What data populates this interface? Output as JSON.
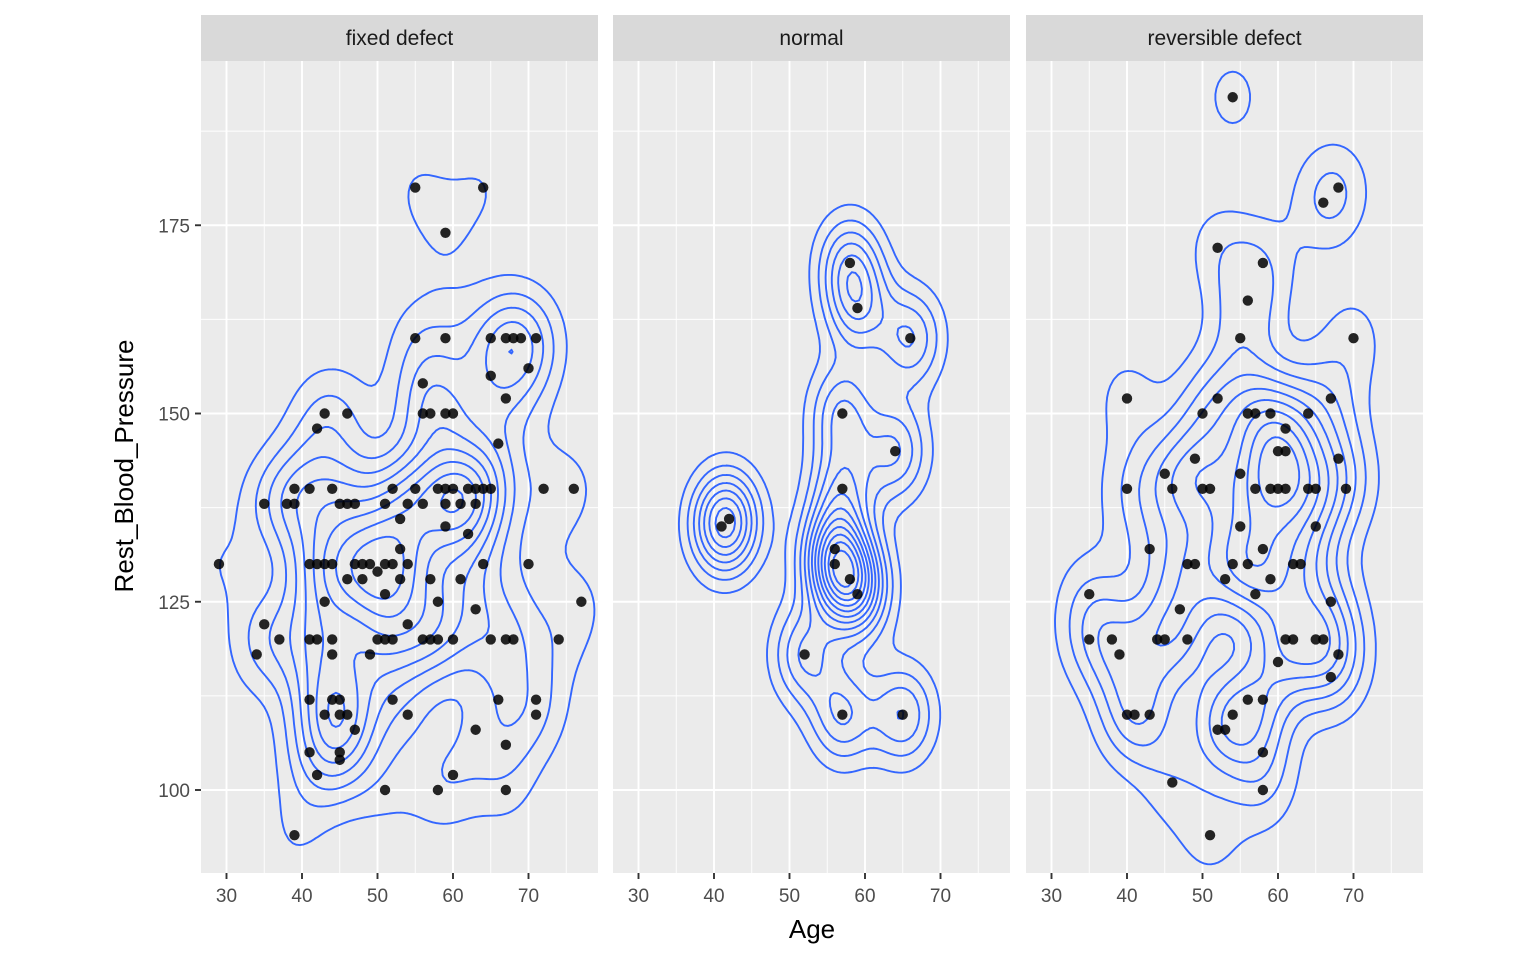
{
  "chart_data": {
    "type": "scatter",
    "subtype": "faceted scatter with 2D density contours",
    "xlabel": "Age",
    "ylabel": "Rest_Blood_Pressure",
    "x_ticks": [
      30,
      40,
      50,
      60,
      70
    ],
    "y_ticks": [
      100,
      125,
      150,
      175
    ],
    "xlim": [
      28,
      80
    ],
    "ylim": [
      89,
      197
    ],
    "grid": true,
    "legend": "none",
    "colors": {
      "panel_background": "#ebebeb",
      "strip_background": "#d9d9d9",
      "grid": "#ffffff",
      "points": "#000000",
      "contours": "#3366ff"
    },
    "facets": [
      {
        "label": "fixed defect",
        "points": [
          [
            29,
            130
          ],
          [
            34,
            118
          ],
          [
            35,
            122
          ],
          [
            35,
            138
          ],
          [
            37,
            120
          ],
          [
            38,
            138
          ],
          [
            39,
            138
          ],
          [
            39,
            140
          ],
          [
            39,
            94
          ],
          [
            41,
            112
          ],
          [
            41,
            105
          ],
          [
            41,
            120
          ],
          [
            41,
            130
          ],
          [
            41,
            140
          ],
          [
            42,
            102
          ],
          [
            42,
            120
          ],
          [
            42,
            130
          ],
          [
            42,
            148
          ],
          [
            43,
            110
          ],
          [
            43,
            130
          ],
          [
            43,
            125
          ],
          [
            43,
            150
          ],
          [
            44,
            112
          ],
          [
            44,
            118
          ],
          [
            44,
            120
          ],
          [
            44,
            130
          ],
          [
            44,
            140
          ],
          [
            45,
            110
          ],
          [
            45,
            112
          ],
          [
            45,
            138
          ],
          [
            45,
            104
          ],
          [
            45,
            105
          ],
          [
            46,
            110
          ],
          [
            46,
            128
          ],
          [
            46,
            150
          ],
          [
            46,
            138
          ],
          [
            47,
            108
          ],
          [
            47,
            130
          ],
          [
            47,
            138
          ],
          [
            48,
            128
          ],
          [
            48,
            130
          ],
          [
            49,
            118
          ],
          [
            49,
            130
          ],
          [
            50,
            120
          ],
          [
            50,
            129
          ],
          [
            51,
            100
          ],
          [
            51,
            120
          ],
          [
            51,
            126
          ],
          [
            51,
            130
          ],
          [
            51,
            138
          ],
          [
            52,
            112
          ],
          [
            52,
            120
          ],
          [
            52,
            130
          ],
          [
            52,
            140
          ],
          [
            53,
            128
          ],
          [
            53,
            132
          ],
          [
            53,
            136
          ],
          [
            54,
            110
          ],
          [
            54,
            122
          ],
          [
            54,
            130
          ],
          [
            54,
            138
          ],
          [
            55,
            180
          ],
          [
            55,
            140
          ],
          [
            55,
            160
          ],
          [
            56,
            120
          ],
          [
            56,
            138
          ],
          [
            56,
            154
          ],
          [
            56,
            150
          ],
          [
            57,
            120
          ],
          [
            57,
            128
          ],
          [
            57,
            150
          ],
          [
            58,
            100
          ],
          [
            58,
            120
          ],
          [
            58,
            125
          ],
          [
            58,
            140
          ],
          [
            59,
            174
          ],
          [
            59,
            160
          ],
          [
            59,
            150
          ],
          [
            59,
            140
          ],
          [
            59,
            138
          ],
          [
            59,
            135
          ],
          [
            60,
            102
          ],
          [
            60,
            150
          ],
          [
            60,
            140
          ],
          [
            60,
            120
          ],
          [
            61,
            128
          ],
          [
            61,
            138
          ],
          [
            62,
            140
          ],
          [
            62,
            134
          ],
          [
            63,
            108
          ],
          [
            63,
            124
          ],
          [
            63,
            138
          ],
          [
            63,
            140
          ],
          [
            64,
            180
          ],
          [
            64,
            130
          ],
          [
            64,
            140
          ],
          [
            65,
            120
          ],
          [
            65,
            140
          ],
          [
            65,
            155
          ],
          [
            65,
            160
          ],
          [
            66,
            112
          ],
          [
            66,
            146
          ],
          [
            67,
            106
          ],
          [
            67,
            120
          ],
          [
            67,
            152
          ],
          [
            67,
            160
          ],
          [
            67,
            100
          ],
          [
            68,
            120
          ],
          [
            68,
            160
          ],
          [
            69,
            160
          ],
          [
            70,
            130
          ],
          [
            70,
            156
          ],
          [
            71,
            110
          ],
          [
            71,
            112
          ],
          [
            71,
            160
          ],
          [
            72,
            140
          ],
          [
            74,
            120
          ],
          [
            76,
            140
          ],
          [
            77,
            125
          ]
        ]
      },
      {
        "label": "normal",
        "points": [
          [
            41,
            135
          ],
          [
            42,
            136
          ],
          [
            52,
            118
          ],
          [
            56,
            132
          ],
          [
            56,
            130
          ],
          [
            57,
            150
          ],
          [
            57,
            140
          ],
          [
            57,
            110
          ],
          [
            58,
            128
          ],
          [
            58,
            170
          ],
          [
            59,
            164
          ],
          [
            59,
            126
          ],
          [
            64,
            145
          ],
          [
            65,
            110
          ],
          [
            66,
            160
          ]
        ]
      },
      {
        "label": "reversible defect",
        "points": [
          [
            35,
            126
          ],
          [
            35,
            120
          ],
          [
            38,
            120
          ],
          [
            39,
            118
          ],
          [
            40,
            152
          ],
          [
            40,
            140
          ],
          [
            40,
            110
          ],
          [
            41,
            110
          ],
          [
            43,
            132
          ],
          [
            43,
            110
          ],
          [
            44,
            120
          ],
          [
            45,
            142
          ],
          [
            45,
            120
          ],
          [
            46,
            140
          ],
          [
            46,
            101
          ],
          [
            47,
            124
          ],
          [
            48,
            130
          ],
          [
            48,
            120
          ],
          [
            49,
            144
          ],
          [
            49,
            130
          ],
          [
            50,
            140
          ],
          [
            50,
            150
          ],
          [
            51,
            94
          ],
          [
            51,
            140
          ],
          [
            52,
            172
          ],
          [
            52,
            152
          ],
          [
            52,
            108
          ],
          [
            53,
            128
          ],
          [
            53,
            108
          ],
          [
            54,
            192
          ],
          [
            54,
            130
          ],
          [
            54,
            110
          ],
          [
            55,
            160
          ],
          [
            55,
            142
          ],
          [
            55,
            135
          ],
          [
            56,
            165
          ],
          [
            56,
            150
          ],
          [
            56,
            130
          ],
          [
            56,
            112
          ],
          [
            57,
            150
          ],
          [
            57,
            126
          ],
          [
            57,
            140
          ],
          [
            58,
            100
          ],
          [
            58,
            105
          ],
          [
            58,
            112
          ],
          [
            58,
            132
          ],
          [
            58,
            170
          ],
          [
            59,
            150
          ],
          [
            59,
            128
          ],
          [
            59,
            140
          ],
          [
            60,
            145
          ],
          [
            60,
            140
          ],
          [
            60,
            117
          ],
          [
            61,
            148
          ],
          [
            61,
            145
          ],
          [
            61,
            140
          ],
          [
            61,
            120
          ],
          [
            62,
            130
          ],
          [
            62,
            120
          ],
          [
            63,
            130
          ],
          [
            64,
            150
          ],
          [
            64,
            140
          ],
          [
            65,
            140
          ],
          [
            65,
            135
          ],
          [
            65,
            120
          ],
          [
            66,
            178
          ],
          [
            66,
            120
          ],
          [
            67,
            152
          ],
          [
            67,
            125
          ],
          [
            67,
            115
          ],
          [
            68,
            180
          ],
          [
            68,
            144
          ],
          [
            68,
            118
          ],
          [
            69,
            140
          ],
          [
            70,
            160
          ]
        ]
      }
    ]
  }
}
